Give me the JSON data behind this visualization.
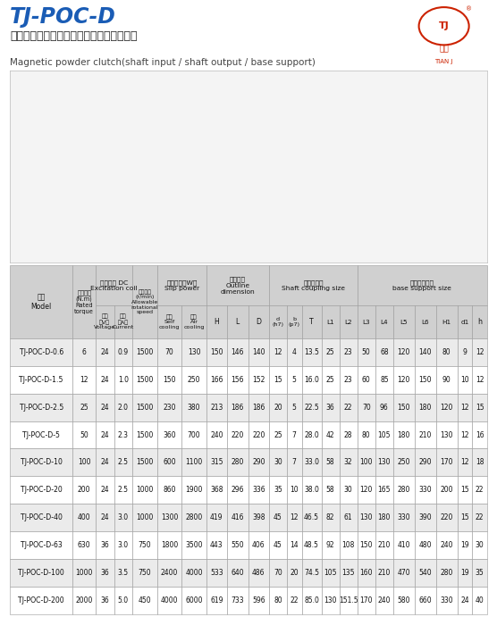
{
  "title": "TJ-POC-D",
  "subtitle": "（軸輸入、軸輸出、機座支撐）磁粉離合器",
  "subtitle_en": "Magnetic powder clutch(shaft input / shaft output / base support)",
  "rows": [
    [
      "TJ-POC-D-0.6",
      "6",
      "24",
      "0.9",
      "1500",
      "70",
      "130",
      "150",
      "146",
      "140",
      "12",
      "4",
      "13.5",
      "25",
      "23",
      "50",
      "68",
      "120",
      "140",
      "80",
      "9",
      "12"
    ],
    [
      "TJ-POC-D-1.5",
      "12",
      "24",
      "1.0",
      "1500",
      "150",
      "250",
      "166",
      "156",
      "152",
      "15",
      "5",
      "16.0",
      "25",
      "23",
      "60",
      "85",
      "120",
      "150",
      "90",
      "10",
      "12"
    ],
    [
      "TJ-POC-D-2.5",
      "25",
      "24",
      "2.0",
      "1500",
      "230",
      "380",
      "213",
      "186",
      "186",
      "20",
      "5",
      "22.5",
      "36",
      "22",
      "70",
      "96",
      "150",
      "180",
      "120",
      "12",
      "15"
    ],
    [
      "TJ-POC-D-5",
      "50",
      "24",
      "2.3",
      "1500",
      "360",
      "700",
      "240",
      "220",
      "220",
      "25",
      "7",
      "28.0",
      "42",
      "28",
      "80",
      "105",
      "180",
      "210",
      "130",
      "12",
      "16"
    ],
    [
      "TJ-POC-D-10",
      "100",
      "24",
      "2.5",
      "1500",
      "600",
      "1100",
      "315",
      "280",
      "290",
      "30",
      "7",
      "33.0",
      "58",
      "32",
      "100",
      "130",
      "250",
      "290",
      "170",
      "12",
      "18"
    ],
    [
      "TJ-POC-D-20",
      "200",
      "24",
      "2.5",
      "1000",
      "860",
      "1900",
      "368",
      "296",
      "336",
      "35",
      "10",
      "38.0",
      "58",
      "30",
      "120",
      "165",
      "280",
      "330",
      "200",
      "15",
      "22"
    ],
    [
      "TJ-POC-D-40",
      "400",
      "24",
      "3.0",
      "1000",
      "1300",
      "2800",
      "419",
      "416",
      "398",
      "45",
      "12",
      "46.5",
      "82",
      "61",
      "130",
      "180",
      "330",
      "390",
      "220",
      "15",
      "22"
    ],
    [
      "TJ-POC-D-63",
      "630",
      "36",
      "3.0",
      "750",
      "1800",
      "3500",
      "443",
      "550",
      "406",
      "45",
      "14",
      "48.5",
      "92",
      "108",
      "150",
      "210",
      "410",
      "480",
      "240",
      "19",
      "30"
    ],
    [
      "TJ-POC-D-100",
      "1000",
      "36",
      "3.5",
      "750",
      "2400",
      "4000",
      "533",
      "640",
      "486",
      "70",
      "20",
      "74.5",
      "105",
      "135",
      "160",
      "210",
      "470",
      "540",
      "280",
      "19",
      "35"
    ],
    [
      "TJ-POC-D-200",
      "2000",
      "36",
      "5.0",
      "450",
      "4000",
      "6000",
      "619",
      "733",
      "596",
      "80",
      "22",
      "85.0",
      "130",
      "151.5",
      "170",
      "240",
      "580",
      "660",
      "330",
      "24",
      "40"
    ]
  ],
  "header_bg": "#d0d0d0",
  "row_bg_even": "#ebebeb",
  "row_bg_odd": "#ffffff",
  "border_color": "#999999",
  "title_color": "#1a5cb5",
  "subtitle_color": "#222222",
  "logo_color": "#cc2200"
}
